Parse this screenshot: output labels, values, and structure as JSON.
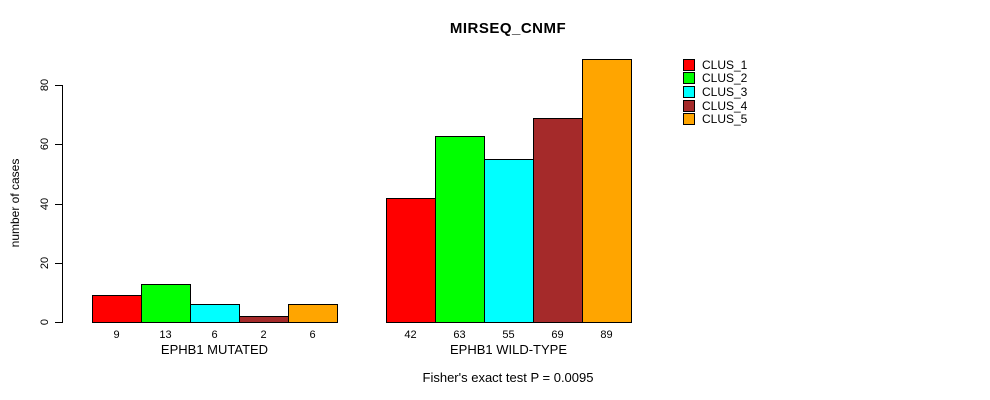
{
  "chart_data": {
    "type": "bar",
    "title": "MIRSEQ_CNMF",
    "ylabel": "number of cases",
    "xlabel": "",
    "ylim": [
      0,
      90
    ],
    "yticks": [
      0,
      20,
      40,
      60,
      80
    ],
    "grid": false,
    "legend_position": "right",
    "categories": [
      "EPHB1 MUTATED",
      "EPHB1 WILD-TYPE"
    ],
    "series": [
      {
        "name": "CLUS_1",
        "color": "#FF0000",
        "values": [
          9,
          42
        ]
      },
      {
        "name": "CLUS_2",
        "color": "#00FF00",
        "values": [
          13,
          63
        ]
      },
      {
        "name": "CLUS_3",
        "color": "#00FFFF",
        "values": [
          6,
          55
        ]
      },
      {
        "name": "CLUS_4",
        "color": "#A52A2A",
        "values": [
          2,
          69
        ]
      },
      {
        "name": "CLUS_5",
        "color": "#FFA500",
        "values": [
          6,
          89
        ]
      }
    ],
    "bar_value_labels": {
      "EPHB1 MUTATED": [
        9,
        13,
        6,
        2,
        6
      ],
      "EPHB1 WILD-TYPE": [
        42,
        63,
        55,
        69,
        89
      ]
    },
    "annotation": "Fisher's exact test P = 0.0095"
  },
  "colors": {
    "axis": "#000000",
    "text": "#000000",
    "background": "#FFFFFF"
  }
}
